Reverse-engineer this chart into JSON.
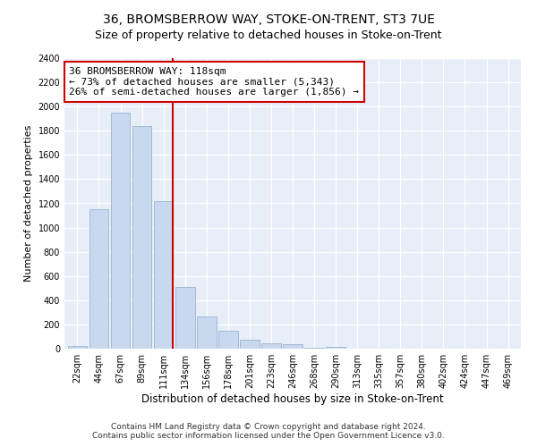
{
  "title": "36, BROMSBERROW WAY, STOKE-ON-TRENT, ST3 7UE",
  "subtitle": "Size of property relative to detached houses in Stoke-on-Trent",
  "xlabel": "Distribution of detached houses by size in Stoke-on-Trent",
  "ylabel": "Number of detached properties",
  "bar_labels": [
    "22sqm",
    "44sqm",
    "67sqm",
    "89sqm",
    "111sqm",
    "134sqm",
    "156sqm",
    "178sqm",
    "201sqm",
    "223sqm",
    "246sqm",
    "268sqm",
    "290sqm",
    "313sqm",
    "335sqm",
    "357sqm",
    "380sqm",
    "402sqm",
    "424sqm",
    "447sqm",
    "469sqm"
  ],
  "bar_values": [
    25,
    1150,
    1950,
    1840,
    1220,
    510,
    265,
    145,
    75,
    45,
    40,
    5,
    12,
    3,
    2,
    1,
    1,
    0,
    0,
    0,
    0
  ],
  "bar_color": "#c8d8ee",
  "bar_edge_color": "#9ab4d0",
  "marker_index": 4,
  "marker_line_color": "#cc0000",
  "annotation_line1": "36 BROMSBERROW WAY: 118sqm",
  "annotation_line2": "← 73% of detached houses are smaller (5,343)",
  "annotation_line3": "26% of semi-detached houses are larger (1,856) →",
  "ylim": [
    0,
    2400
  ],
  "yticks": [
    0,
    200,
    400,
    600,
    800,
    1000,
    1200,
    1400,
    1600,
    1800,
    2000,
    2200,
    2400
  ],
  "footnote1": "Contains HM Land Registry data © Crown copyright and database right 2024.",
  "footnote2": "Contains public sector information licensed under the Open Government Licence v3.0.",
  "bg_color": "#ffffff",
  "plot_bg_color": "#e8eef8",
  "grid_color": "#ffffff",
  "title_fontsize": 10,
  "subtitle_fontsize": 9
}
